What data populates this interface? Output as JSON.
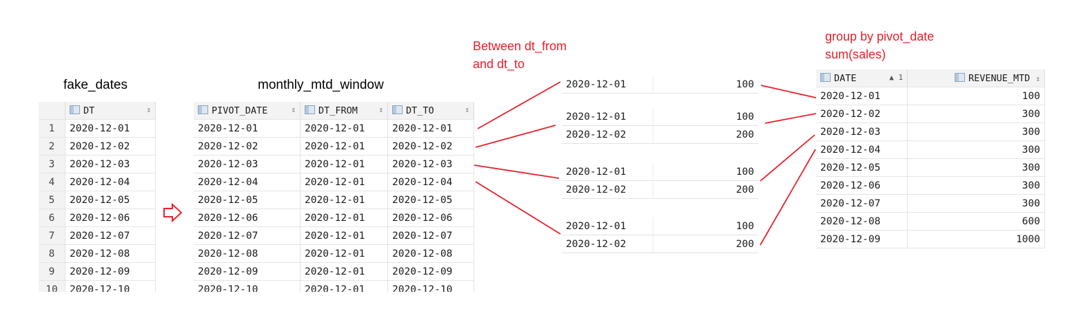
{
  "titles": {
    "fake_dates": "fake_dates",
    "monthly": "monthly_mtd_window",
    "between": [
      "Between dt_from",
      "and dt_to"
    ],
    "group": [
      "group by pivot_date",
      "sum(sales)"
    ]
  },
  "fake": {
    "header": "DT",
    "rows": [
      {
        "n": "1",
        "dt": "2020-12-01"
      },
      {
        "n": "2",
        "dt": "2020-12-02"
      },
      {
        "n": "3",
        "dt": "2020-12-03"
      },
      {
        "n": "4",
        "dt": "2020-12-04"
      },
      {
        "n": "5",
        "dt": "2020-12-05"
      },
      {
        "n": "6",
        "dt": "2020-12-06"
      },
      {
        "n": "7",
        "dt": "2020-12-07"
      },
      {
        "n": "8",
        "dt": "2020-12-08"
      },
      {
        "n": "9",
        "dt": "2020-12-09"
      },
      {
        "n": "10",
        "dt": "2020-12-10"
      }
    ]
  },
  "monthly": {
    "headers": [
      "PIVOT_DATE",
      "DT_FROM",
      "DT_TO"
    ],
    "rows": [
      [
        "2020-12-01",
        "2020-12-01",
        "2020-12-01"
      ],
      [
        "2020-12-02",
        "2020-12-01",
        "2020-12-02"
      ],
      [
        "2020-12-03",
        "2020-12-01",
        "2020-12-03"
      ],
      [
        "2020-12-04",
        "2020-12-01",
        "2020-12-04"
      ],
      [
        "2020-12-05",
        "2020-12-01",
        "2020-12-05"
      ],
      [
        "2020-12-06",
        "2020-12-01",
        "2020-12-06"
      ],
      [
        "2020-12-07",
        "2020-12-01",
        "2020-12-07"
      ],
      [
        "2020-12-08",
        "2020-12-01",
        "2020-12-08"
      ],
      [
        "2020-12-09",
        "2020-12-01",
        "2020-12-09"
      ],
      [
        "2020-12-10",
        "2020-12-01",
        "2020-12-10"
      ]
    ]
  },
  "windows": [
    [
      [
        "2020-12-01",
        "100"
      ]
    ],
    [
      [
        "2020-12-01",
        "100"
      ],
      [
        "2020-12-02",
        "200"
      ]
    ],
    [
      [
        "2020-12-01",
        "100"
      ],
      [
        "2020-12-02",
        "200"
      ]
    ],
    [
      [
        "2020-12-01",
        "100"
      ],
      [
        "2020-12-02",
        "200"
      ]
    ]
  ],
  "result": {
    "headers": [
      "DATE",
      "REVENUE_MTD"
    ],
    "sort_indicator": "▲ 1",
    "rows": [
      [
        "2020-12-01",
        "100"
      ],
      [
        "2020-12-02",
        "300"
      ],
      [
        "2020-12-03",
        "300"
      ],
      [
        "2020-12-04",
        "300"
      ],
      [
        "2020-12-05",
        "300"
      ],
      [
        "2020-12-06",
        "300"
      ],
      [
        "2020-12-07",
        "300"
      ],
      [
        "2020-12-08",
        "600"
      ],
      [
        "2020-12-09",
        "1000"
      ]
    ]
  },
  "colors": {
    "accent": "#e8202a"
  }
}
